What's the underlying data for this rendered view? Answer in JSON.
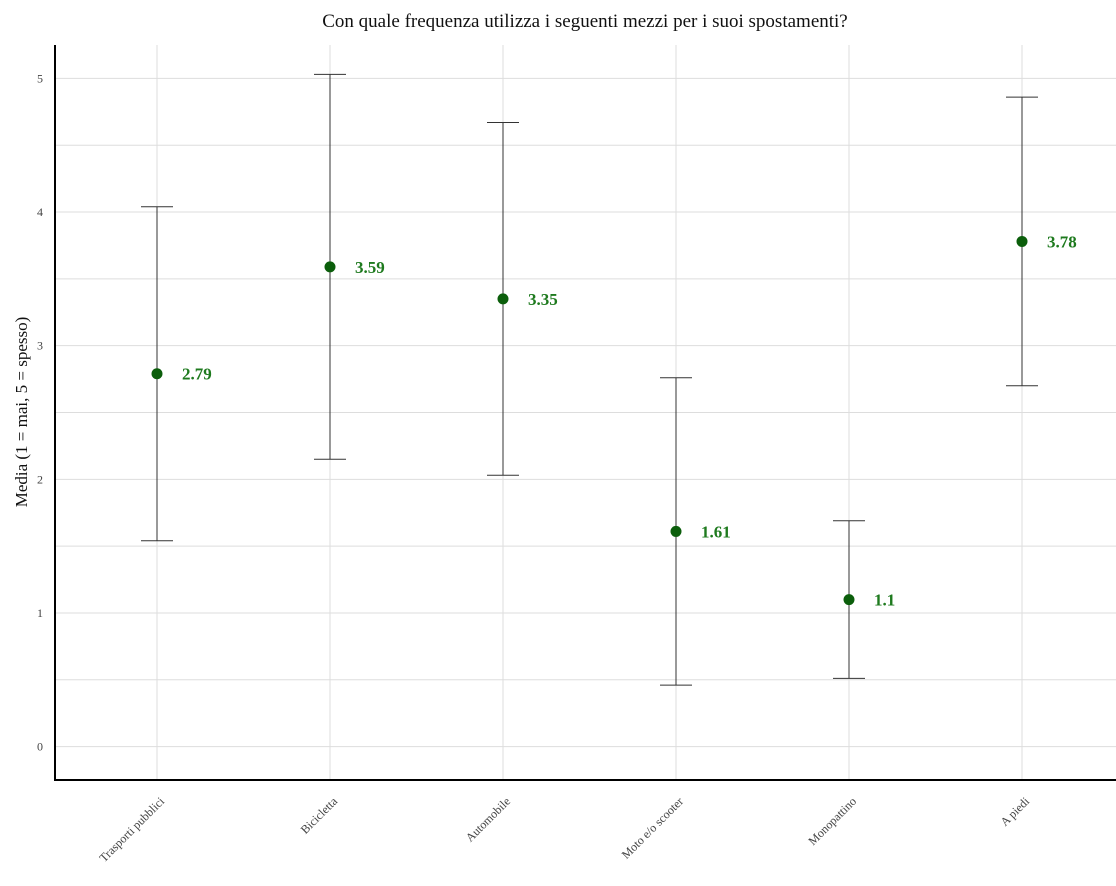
{
  "chart_data": {
    "type": "scatter",
    "title": "Con quale frequenza utilizza i seguenti mezzi per i suoi spostamenti?",
    "xlabel": "",
    "ylabel": "Media (1 = mai, 5 = spesso)",
    "ylim": [
      -0.25,
      5.25
    ],
    "yticks": [
      0,
      1,
      2,
      3,
      4,
      5
    ],
    "grid": true,
    "categories": [
      "Trasporti pubblici",
      "Bicicletta",
      "Automobile",
      "Moto e/o scooter",
      "Monopattino",
      "A piedi"
    ],
    "series": [
      {
        "values": [
          2.79,
          3.59,
          3.35,
          1.61,
          1.1,
          3.78
        ],
        "labels": [
          "2.79",
          "3.59",
          "3.35",
          "1.61",
          "1.1",
          "3.78"
        ],
        "error_low": [
          1.54,
          2.15,
          2.03,
          0.46,
          0.51,
          2.7
        ],
        "error_high": [
          4.04,
          5.03,
          4.67,
          2.76,
          1.69,
          4.86
        ]
      }
    ],
    "colors": {
      "point": "#0b5e0b",
      "label": "#1e7a1e",
      "errorbar": "#333333",
      "grid": "#dddddd",
      "axis": "#000000"
    }
  }
}
